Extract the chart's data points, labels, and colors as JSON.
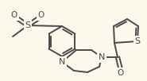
{
  "bg_color": "#fdf8ec",
  "line_color": "#4a4a4a",
  "figsize": [
    1.85,
    1.02
  ],
  "dpi": 100,
  "xlim": [
    0,
    185
  ],
  "ylim": [
    0,
    102
  ]
}
